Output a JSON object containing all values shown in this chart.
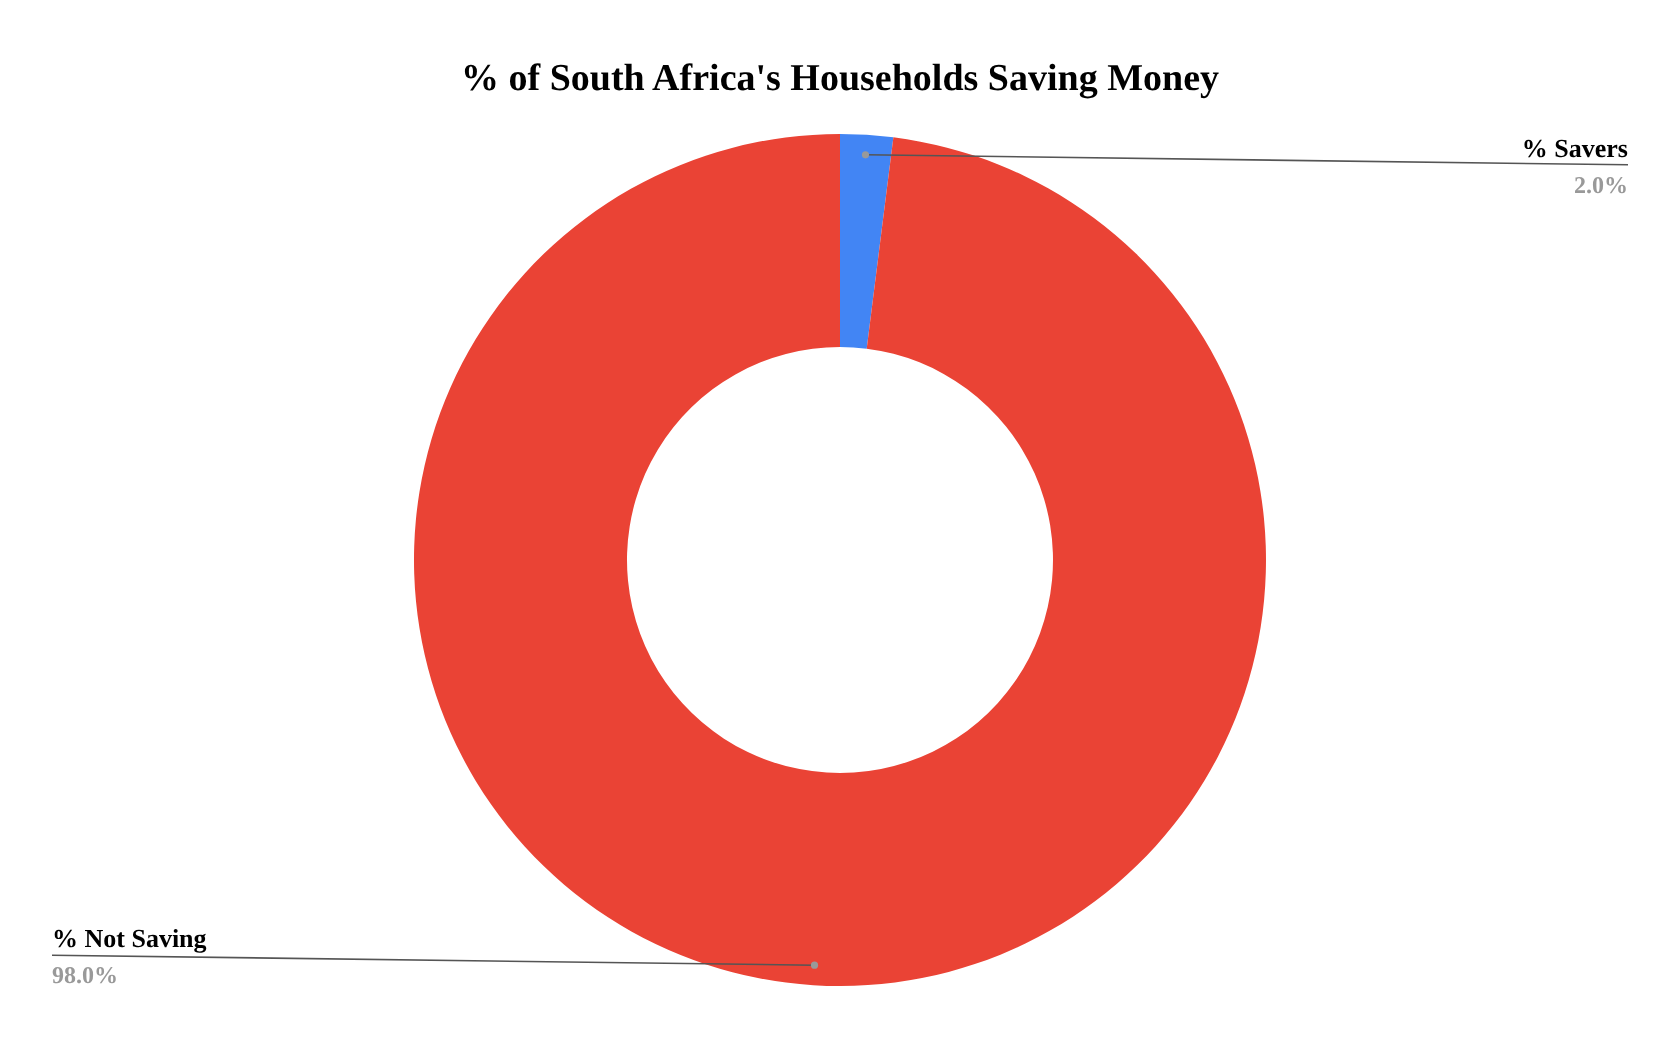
{
  "chart_data": {
    "type": "donut",
    "title": "% of South Africa's Households Saving Money",
    "categories": [
      "% Savers",
      "% Not Saving"
    ],
    "values": [
      2.0,
      98.0
    ],
    "colors": [
      "#4285f4",
      "#ea4335"
    ],
    "value_labels": [
      "2.0%",
      "98.0%"
    ]
  }
}
